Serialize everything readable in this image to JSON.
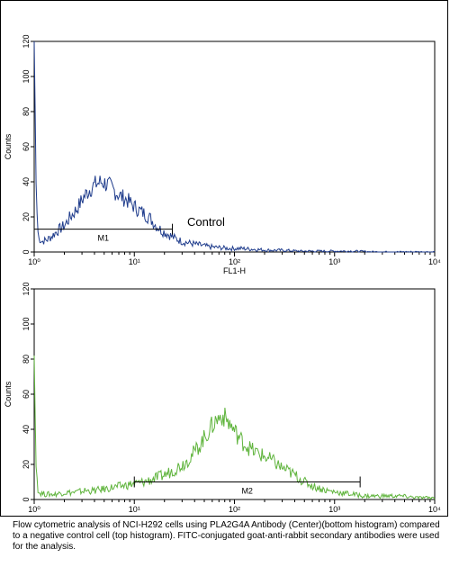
{
  "chart_data": [
    {
      "type": "line",
      "title": "",
      "xlabel": "FL1-H",
      "ylabel": "Counts",
      "xscale": "log",
      "xlim": [
        1,
        10000
      ],
      "ylim": [
        0,
        120
      ],
      "x_tick_labels": [
        "10⁰",
        "10¹",
        "10²",
        "10³",
        "10⁴"
      ],
      "y_tick_labels": [
        "0",
        "20",
        "40",
        "60",
        "80",
        "100",
        "120"
      ],
      "line_color": "#1f3c8c",
      "annotation": "Control",
      "marker": {
        "label": "M1",
        "x_range": [
          1,
          24
        ]
      },
      "series": [
        {
          "x": [
            1,
            1.05,
            1.1,
            1.2,
            1.35,
            1.5,
            1.7,
            2,
            2.3,
            2.7,
            3.1,
            3.6,
            4.2,
            4.8,
            5.5,
            6.3,
            7.2,
            8.3,
            9.5,
            11,
            12.5,
            14.5,
            16.5,
            19,
            22,
            25,
            30,
            36,
            45,
            55,
            70,
            90,
            120,
            160,
            220,
            300,
            450,
            700,
            1000,
            1500,
            2500,
            4000,
            6500,
            10000
          ],
          "y": [
            120,
            30,
            8,
            6,
            7,
            9,
            12,
            15,
            20,
            25,
            31,
            36,
            39,
            40,
            38,
            35,
            32,
            30,
            27,
            24,
            22,
            19,
            15,
            12,
            10,
            8,
            6,
            5,
            4,
            3,
            2.5,
            2,
            2,
            1.5,
            1,
            1,
            0.5,
            0.5,
            0.5,
            0.5,
            0,
            0,
            0,
            0
          ]
        }
      ]
    },
    {
      "type": "line",
      "title": "",
      "xlabel": "",
      "ylabel": "Counts",
      "xscale": "log",
      "xlim": [
        1,
        10000
      ],
      "ylim": [
        0,
        120
      ],
      "x_tick_labels": [
        "10⁰",
        "10¹",
        "10²",
        "10³",
        "10⁴"
      ],
      "y_tick_labels": [
        "0",
        "20",
        "40",
        "60",
        "80",
        "100",
        "120"
      ],
      "line_color": "#5fb43c",
      "marker": {
        "label": "M2",
        "x_range": [
          10,
          1800
        ]
      },
      "series": [
        {
          "x": [
            1,
            1.04,
            1.1,
            1.3,
            1.6,
            2,
            2.5,
            3.2,
            4,
            5,
            6.3,
            8,
            10,
            12.5,
            16,
            20,
            25,
            32,
            40,
            50,
            63,
            75,
            85,
            100,
            120,
            150,
            190,
            240,
            300,
            400,
            500,
            650,
            850,
            1100,
            1500,
            2000,
            3000,
            4500,
            7000,
            10000
          ],
          "y": [
            82,
            20,
            4,
            3,
            3,
            4,
            4,
            5,
            5,
            6,
            7,
            8,
            9,
            10,
            12,
            14,
            17,
            21,
            27,
            35,
            44,
            48,
            45,
            39,
            33,
            28,
            25,
            22,
            18,
            14,
            10,
            7,
            5,
            4,
            3,
            2,
            2,
            2,
            1,
            1
          ]
        }
      ]
    }
  ],
  "caption": "Flow cytometric analysis of NCI-H292 cells using PLA2G4A Antibody (Center)(bottom histogram) compared to a negative control cell (top histogram). FITC-conjugated goat-anti-rabbit secondary antibodies were used for the analysis."
}
